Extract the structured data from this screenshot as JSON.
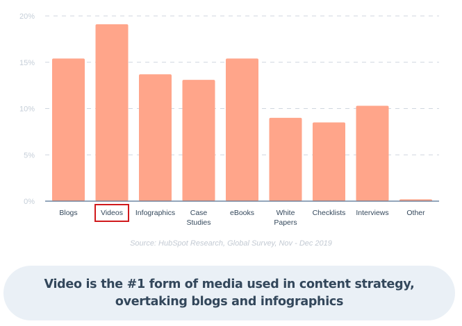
{
  "chart_data": {
    "type": "bar",
    "categories": [
      "Blogs",
      "Videos",
      "Infographics",
      "Case\nStudies",
      "eBooks",
      "White\nPapers",
      "Checklists",
      "Interviews",
      "Other"
    ],
    "values": [
      15.4,
      19.1,
      13.7,
      13.1,
      15.4,
      9.0,
      8.5,
      10.3,
      0.2
    ],
    "ylim": [
      0,
      20
    ],
    "yticks": [
      0,
      5,
      10,
      15,
      20
    ],
    "ytick_labels": [
      "0%",
      "5%",
      "10%",
      "15%",
      "20%"
    ],
    "grid": "horizontal dashed",
    "highlighted_category": "Videos",
    "title": "",
    "xlabel": "",
    "ylabel": ""
  },
  "colors": {
    "bar": "#ffa58a",
    "highlight_box": "#d0191c",
    "grid": "#cfd6df",
    "axis": "#516f90",
    "text": "#33475b",
    "tick_text": "#c5ced8",
    "callout_bg": "#eaf0f6"
  },
  "source": "Source: HubSpot Research, Global Survey, Nov - Dec 2019",
  "callout": "Video is the #1 form of media used in content strategy,\novertaking blogs and infographics"
}
